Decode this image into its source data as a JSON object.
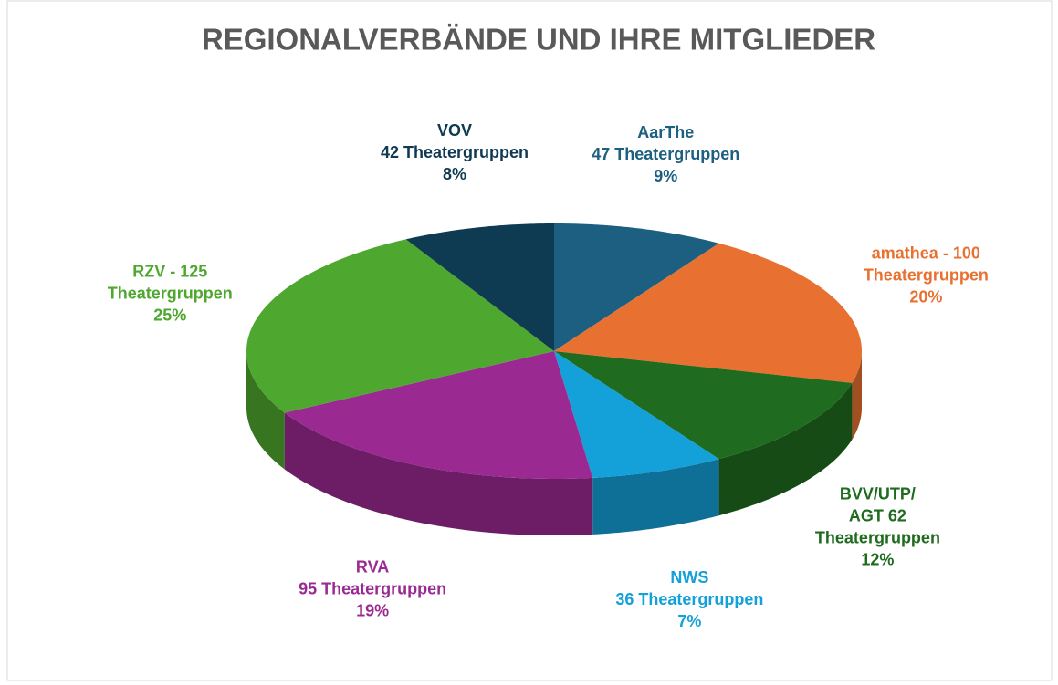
{
  "chart_data": {
    "type": "pie3d",
    "title": "REGIONALVERBÄNDE UND IHRE  MITGLIEDER",
    "categories": [
      [
        "AarThe",
        "47 Theatergruppen"
      ],
      [
        "amathea  - 100",
        "Theatergruppen"
      ],
      [
        "BVV/UTP/",
        "AGT  62",
        "Theatergruppen"
      ],
      [
        "NWS",
        "36 Theatergruppen"
      ],
      [
        "RVA",
        "95 Theatergruppen"
      ],
      [
        "RZV - 125",
        "Theatergruppen"
      ],
      [
        "VOV",
        "42 Theatergruppen"
      ]
    ],
    "values": [
      9,
      20,
      12,
      7,
      19,
      25,
      8
    ],
    "value_labels": [
      "9%",
      "20%",
      "12%",
      "7%",
      "19%",
      "25%",
      "8%"
    ],
    "colors": [
      "#1d5f80",
      "#e87131",
      "#1f6b1f",
      "#14a0d8",
      "#9a2a92",
      "#4ea72e",
      "#0e3a52"
    ]
  }
}
